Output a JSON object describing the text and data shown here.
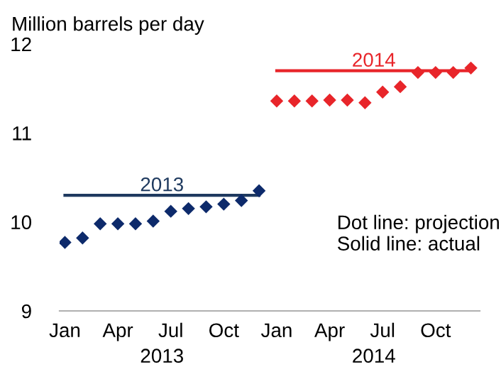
{
  "chart_data": {
    "type": "scatter",
    "ylabel": "Million barrels per day",
    "categories": [
      "Jan",
      null,
      null,
      "Apr",
      null,
      null,
      "Jul",
      null,
      null,
      "Oct",
      null,
      null,
      "Jan",
      null,
      null,
      "Apr",
      null,
      null,
      "Jul",
      null,
      null,
      "Oct",
      null,
      null
    ],
    "series": [
      {
        "color": "#0d2a6b",
        "marker": "diamond",
        "values": [
          9.77,
          9.82,
          9.98,
          9.98,
          9.98,
          10.01,
          10.12,
          10.15,
          10.17,
          10.2,
          10.24,
          10.35,
          null,
          null,
          null,
          null,
          null,
          null,
          null,
          null,
          null,
          null,
          null,
          null
        ]
      },
      {
        "color": "#e8252a",
        "marker": "diamond",
        "values": [
          null,
          null,
          null,
          null,
          null,
          null,
          null,
          null,
          null,
          null,
          null,
          null,
          11.36,
          11.36,
          11.36,
          11.37,
          11.37,
          11.34,
          11.46,
          11.52,
          11.68,
          11.68,
          11.68,
          11.73
        ]
      },
      {
        "type": "line",
        "name": "2013",
        "color": "#1f3a5f",
        "marker": "none",
        "values": [
          10.3,
          10.3,
          10.3,
          10.3,
          10.3,
          10.3,
          10.3,
          10.3,
          10.3,
          10.3,
          10.3,
          10.3,
          null,
          null,
          null,
          null,
          null,
          null,
          null,
          null,
          null,
          null,
          null,
          null
        ]
      },
      {
        "type": "line",
        "name": "2014",
        "color": "#e8252a",
        "marker": "none",
        "values": [
          null,
          null,
          null,
          null,
          null,
          null,
          null,
          null,
          null,
          null,
          null,
          null,
          11.7,
          11.7,
          11.7,
          11.7,
          11.7,
          11.7,
          11.7,
          11.7,
          11.7,
          11.7,
          11.7,
          11.7
        ]
      }
    ],
    "ylim": [
      9,
      12
    ],
    "yticks": [
      9,
      10,
      11,
      12
    ],
    "annotations": [
      "2013",
      "2014",
      "Dot line: projection\nSolid line: actual"
    ],
    "grid": false,
    "legend": false
  }
}
